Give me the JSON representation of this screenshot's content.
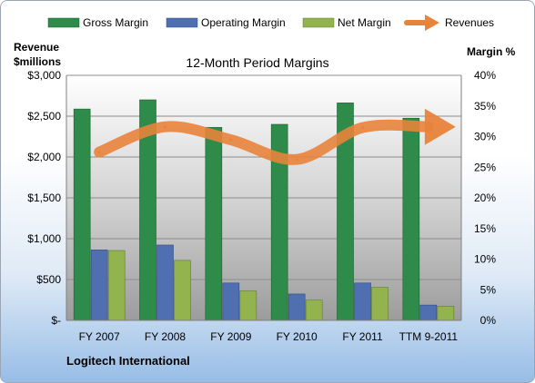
{
  "chart_data": {
    "type": "bar",
    "title": "12-Month Period Margins",
    "categories": [
      "FY 2007",
      "FY 2008",
      "FY 2009",
      "FY 2010",
      "FY 2011",
      "TTM 9-2011"
    ],
    "series": [
      {
        "name": "Gross Margin",
        "axis": "right",
        "kind": "bar",
        "color": "#2e8b4a",
        "values": [
          34.5,
          36.0,
          31.5,
          32.0,
          35.5,
          33.0
        ]
      },
      {
        "name": "Operating Margin",
        "axis": "right",
        "kind": "bar",
        "color": "#4f6fb0",
        "values": [
          11.5,
          12.3,
          6.1,
          4.3,
          6.1,
          2.5
        ]
      },
      {
        "name": "Net Margin",
        "axis": "right",
        "kind": "bar",
        "color": "#93b34e",
        "values": [
          11.4,
          9.8,
          4.8,
          3.3,
          5.4,
          2.3
        ]
      },
      {
        "name": "Revenues",
        "axis": "left",
        "kind": "line",
        "color": "#e8833a",
        "values": [
          2060,
          2370,
          2210,
          1970,
          2360,
          2370
        ]
      }
    ],
    "left_axis": {
      "label_line1": "Revenue",
      "label_line2": "$millions",
      "min": 0,
      "max": 3000,
      "step": 500,
      "tick_labels": [
        "$-",
        "$500",
        "$1,000",
        "$1,500",
        "$2,000",
        "$2,500",
        "$3,000"
      ]
    },
    "right_axis": {
      "label": "Margin %",
      "min": 0,
      "max": 40,
      "step": 5,
      "tick_labels": [
        "0%",
        "5%",
        "10%",
        "15%",
        "20%",
        "25%",
        "30%",
        "35%",
        "40%"
      ]
    },
    "grid": true,
    "legend_position": "top",
    "plot_background": "grey-gradient"
  },
  "footer": {
    "company": "Logitech International"
  }
}
